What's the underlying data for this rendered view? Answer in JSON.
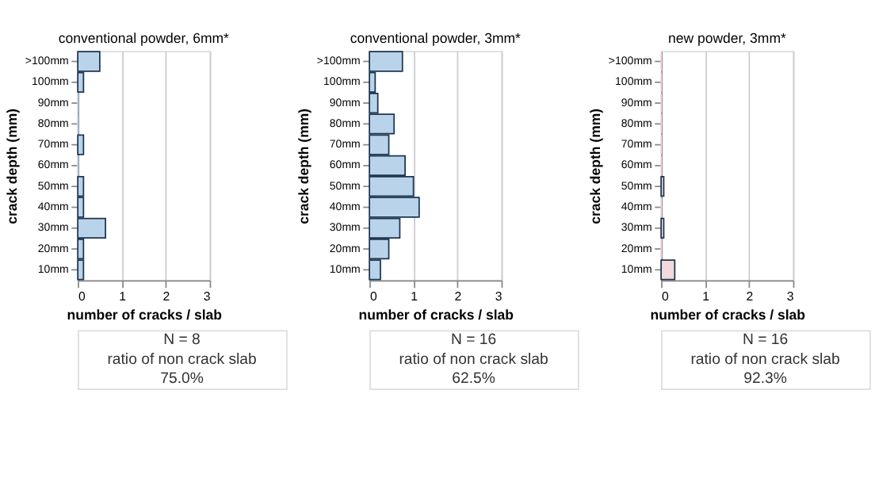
{
  "chart_data": [
    {
      "type": "bar",
      "orientation": "horizontal",
      "title": "conventional powder, 6mm*",
      "xlabel": "number of cracks / slab",
      "ylabel": "crack depth (mm)",
      "categories": [
        ">100mm",
        "100mm",
        "90mm",
        "80mm",
        "70mm",
        "60mm",
        "50mm",
        "40mm",
        "30mm",
        "20mm",
        "10mm"
      ],
      "values": [
        0.5,
        0.13,
        0,
        0,
        0.13,
        0,
        0.13,
        0.13,
        0.63,
        0.13,
        0.13
      ],
      "color": "#b9d3ea",
      "xlim": [
        0,
        3
      ],
      "xticks": [
        0,
        1,
        2,
        3
      ],
      "grid": "x",
      "annotations": [
        "N = 8",
        "ratio of non crack slab",
        "75.0%"
      ]
    },
    {
      "type": "bar",
      "orientation": "horizontal",
      "title": "conventional powder, 3mm*",
      "xlabel": "number of cracks / slab",
      "ylabel": "crack depth (mm)",
      "categories": [
        ">100mm",
        "100mm",
        "90mm",
        "80mm",
        "70mm",
        "60mm",
        "50mm",
        "40mm",
        "30mm",
        "20mm",
        "10mm"
      ],
      "values": [
        0.75,
        0.13,
        0.19,
        0.56,
        0.44,
        0.81,
        1.0,
        1.13,
        0.69,
        0.44,
        0.25
      ],
      "color": "#b9d3ea",
      "xlim": [
        0,
        3
      ],
      "xticks": [
        0,
        1,
        2,
        3
      ],
      "grid": "x",
      "annotations": [
        "N = 16",
        "ratio of non crack slab",
        "62.5%"
      ]
    },
    {
      "type": "bar",
      "orientation": "horizontal",
      "title": "new powder, 3mm*",
      "xlabel": "number of cracks / slab",
      "ylabel": "crack depth (mm)",
      "categories": [
        ">100mm",
        "100mm",
        "90mm",
        "80mm",
        "70mm",
        "60mm",
        "50mm",
        "40mm",
        "30mm",
        "20mm",
        "10mm"
      ],
      "values": [
        0,
        0,
        0,
        0,
        0,
        0,
        0.06,
        0,
        0.06,
        0,
        0.31
      ],
      "color": "#f2d9dd",
      "xlim": [
        0,
        3
      ],
      "xticks": [
        0,
        1,
        2,
        3
      ],
      "grid": "x",
      "annotations": [
        "N = 16",
        "ratio of non crack slab",
        "92.3%"
      ]
    }
  ]
}
